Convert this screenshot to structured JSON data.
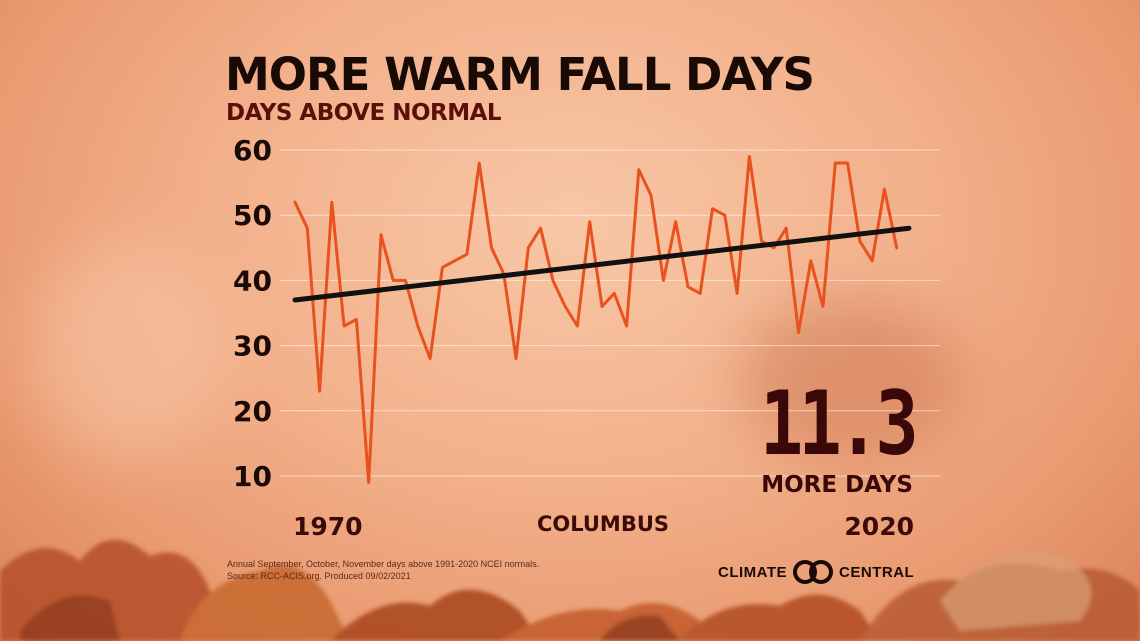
{
  "header": {
    "title": "MORE WARM FALL DAYS",
    "subtitle": "DAYS ABOVE NORMAL"
  },
  "chart_data": {
    "type": "line",
    "title": "MORE WARM FALL DAYS",
    "ylabel": "DAYS ABOVE NORMAL",
    "xlabel_start": "1970",
    "xlabel_end": "2020",
    "station": "COLUMBUS",
    "ylim": [
      5,
      60
    ],
    "yticks": [
      "60",
      "50",
      "40",
      "30",
      "20",
      "10"
    ],
    "grid": true,
    "x": [
      1970,
      1971,
      1972,
      1973,
      1974,
      1975,
      1976,
      1977,
      1978,
      1979,
      1980,
      1981,
      1982,
      1983,
      1984,
      1985,
      1986,
      1987,
      1988,
      1989,
      1990,
      1991,
      1992,
      1993,
      1994,
      1995,
      1996,
      1997,
      1998,
      1999,
      2000,
      2001,
      2002,
      2003,
      2004,
      2005,
      2006,
      2007,
      2008,
      2009,
      2010,
      2011,
      2012,
      2013,
      2014,
      2015,
      2016,
      2017,
      2018,
      2019,
      2020
    ],
    "series": [
      {
        "values": [
          52,
          48,
          23,
          52,
          33,
          34,
          9,
          47,
          40,
          40,
          33,
          28,
          42,
          43,
          44,
          58,
          45,
          41,
          28,
          45,
          48,
          40,
          36,
          33,
          49,
          36,
          38,
          33,
          57,
          53,
          40,
          49,
          39,
          38,
          51,
          50,
          38,
          59,
          46,
          45,
          48,
          32,
          43,
          36,
          58,
          58,
          46,
          43,
          54,
          45,
          null
        ],
        "color": "#e8521f"
      }
    ],
    "trend": {
      "start": [
        1970,
        37
      ],
      "end": [
        2020,
        48
      ],
      "color": "#111111"
    }
  },
  "callout": {
    "value": "11.3",
    "unit": "MORE DAYS"
  },
  "footnote": {
    "line1": "Annual September, October, November days above 1991-2020 NCEI normals.",
    "line2": "Source: RCC-ACIS.org. Produced 09/02/2021"
  },
  "logo": {
    "left": "CLIMATE",
    "right": "CENTRAL"
  }
}
